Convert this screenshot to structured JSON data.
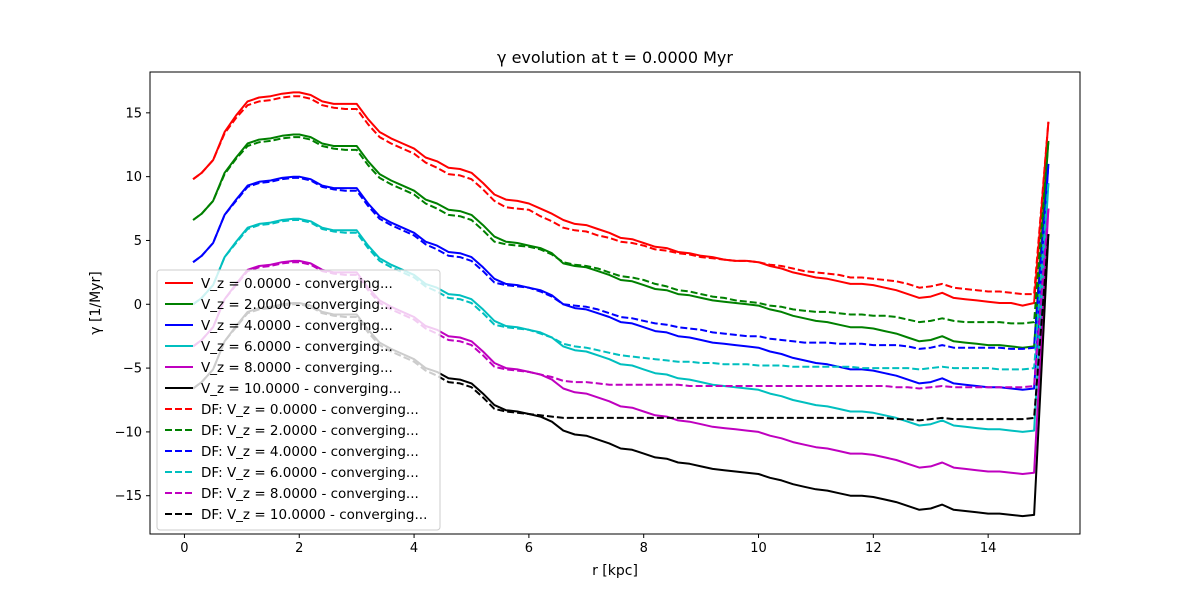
{
  "chart_data": {
    "type": "line",
    "title": "γ evolution at t = 0.0000 Myr",
    "xlabel": "r [kpc]",
    "ylabel": "γ [1/Myr]",
    "xlim": [
      -0.6,
      15.6
    ],
    "ylim": [
      -18.0,
      18.2
    ],
    "x_ticks": [
      0,
      2,
      4,
      6,
      8,
      10,
      12,
      14
    ],
    "y_ticks": [
      -15,
      -10,
      -5,
      0,
      5,
      10,
      15
    ],
    "grid": false,
    "legend_position": "lower-left",
    "x": [
      0.15,
      0.3,
      0.5,
      0.7,
      0.9,
      1.1,
      1.3,
      1.5,
      1.7,
      1.9,
      2.0,
      2.2,
      2.4,
      2.6,
      2.8,
      3.0,
      3.2,
      3.4,
      3.6,
      3.8,
      4.0,
      4.2,
      4.4,
      4.6,
      4.8,
      5.0,
      5.2,
      5.4,
      5.6,
      5.8,
      6.0,
      6.2,
      6.4,
      6.6,
      6.8,
      7.0,
      7.2,
      7.4,
      7.6,
      7.8,
      8.0,
      8.2,
      8.4,
      8.6,
      8.8,
      9.0,
      9.2,
      9.4,
      9.6,
      9.8,
      10.0,
      10.2,
      10.4,
      10.6,
      10.8,
      11.0,
      11.2,
      11.4,
      11.6,
      11.8,
      12.0,
      12.2,
      12.4,
      12.6,
      12.8,
      13.0,
      13.2,
      13.4,
      13.6,
      13.8,
      14.0,
      14.2,
      14.4,
      14.6,
      14.8
    ],
    "series": [
      {
        "name": "V_z = 0.0000 - converging...",
        "color": "#ff0000",
        "dash": "solid",
        "values": [
          9.8,
          10.3,
          11.3,
          13.5,
          14.8,
          15.9,
          16.2,
          16.3,
          16.5,
          16.6,
          16.6,
          16.4,
          15.9,
          15.7,
          15.7,
          15.7,
          14.5,
          13.5,
          13.0,
          12.6,
          12.2,
          11.5,
          11.2,
          10.7,
          10.6,
          10.3,
          9.5,
          8.6,
          8.2,
          8.1,
          7.9,
          7.5,
          7.1,
          6.6,
          6.3,
          6.2,
          5.9,
          5.6,
          5.2,
          5.1,
          4.8,
          4.5,
          4.4,
          4.1,
          4.0,
          3.8,
          3.7,
          3.5,
          3.4,
          3.4,
          3.3,
          3.0,
          2.8,
          2.5,
          2.3,
          2.1,
          2.0,
          1.8,
          1.6,
          1.6,
          1.5,
          1.3,
          1.1,
          0.8,
          0.5,
          0.6,
          0.9,
          0.5,
          0.4,
          0.3,
          0.2,
          0.1,
          0.1,
          -0.1,
          0.1
        ]
      },
      {
        "name": "V_z = 2.0000 - converging...",
        "color": "#008000",
        "dash": "solid",
        "values": [
          6.6,
          7.1,
          8.1,
          10.3,
          11.5,
          12.6,
          12.9,
          13.0,
          13.2,
          13.3,
          13.3,
          13.1,
          12.6,
          12.4,
          12.4,
          12.4,
          11.2,
          10.2,
          9.7,
          9.3,
          8.9,
          8.2,
          7.9,
          7.4,
          7.3,
          7.0,
          6.2,
          5.3,
          4.9,
          4.8,
          4.6,
          4.4,
          4.0,
          3.2,
          3.0,
          2.9,
          2.6,
          2.3,
          1.9,
          1.8,
          1.5,
          1.2,
          1.1,
          0.8,
          0.7,
          0.5,
          0.3,
          0.2,
          0.1,
          0.0,
          -0.1,
          -0.4,
          -0.6,
          -0.9,
          -1.1,
          -1.3,
          -1.4,
          -1.6,
          -1.8,
          -1.8,
          -1.9,
          -2.1,
          -2.3,
          -2.6,
          -2.9,
          -2.8,
          -2.5,
          -2.9,
          -3.0,
          -3.1,
          -3.2,
          -3.2,
          -3.3,
          -3.4,
          -3.3
        ]
      },
      {
        "name": "V_z = 4.0000 - converging...",
        "color": "#0000ff",
        "dash": "solid",
        "values": [
          3.3,
          3.8,
          4.8,
          7.0,
          8.2,
          9.3,
          9.6,
          9.7,
          9.9,
          10.0,
          10.0,
          9.8,
          9.3,
          9.1,
          9.1,
          9.1,
          7.9,
          6.9,
          6.4,
          6.0,
          5.6,
          4.9,
          4.6,
          4.1,
          4.0,
          3.7,
          2.9,
          2.0,
          1.6,
          1.5,
          1.3,
          1.1,
          0.7,
          0.0,
          -0.3,
          -0.4,
          -0.7,
          -1.0,
          -1.4,
          -1.5,
          -1.8,
          -2.1,
          -2.2,
          -2.5,
          -2.6,
          -2.8,
          -3.0,
          -3.1,
          -3.2,
          -3.3,
          -3.4,
          -3.7,
          -3.9,
          -4.2,
          -4.4,
          -4.6,
          -4.7,
          -4.9,
          -5.1,
          -5.1,
          -5.2,
          -5.4,
          -5.6,
          -5.9,
          -6.2,
          -6.1,
          -5.8,
          -6.2,
          -6.3,
          -6.4,
          -6.5,
          -6.5,
          -6.6,
          -6.7,
          -6.6
        ]
      },
      {
        "name": "V_z = 6.0000 - converging...",
        "color": "#00bfbf",
        "dash": "solid",
        "values": [
          0.0,
          0.5,
          1.5,
          3.7,
          4.9,
          6.0,
          6.3,
          6.4,
          6.6,
          6.7,
          6.7,
          6.5,
          6.0,
          5.8,
          5.8,
          5.8,
          4.6,
          3.6,
          3.1,
          2.7,
          2.3,
          1.6,
          1.3,
          0.8,
          0.7,
          0.4,
          -0.4,
          -1.3,
          -1.7,
          -1.8,
          -2.0,
          -2.2,
          -2.6,
          -3.3,
          -3.6,
          -3.7,
          -4.0,
          -4.3,
          -4.7,
          -4.8,
          -5.1,
          -5.4,
          -5.5,
          -5.8,
          -5.9,
          -6.1,
          -6.3,
          -6.4,
          -6.5,
          -6.6,
          -6.7,
          -7.0,
          -7.2,
          -7.5,
          -7.7,
          -7.9,
          -8.0,
          -8.2,
          -8.4,
          -8.4,
          -8.5,
          -8.7,
          -8.9,
          -9.2,
          -9.5,
          -9.4,
          -9.1,
          -9.5,
          -9.6,
          -9.7,
          -9.8,
          -9.8,
          -9.9,
          -10.0,
          -9.9
        ]
      },
      {
        "name": "V_z = 8.0000 - converging...",
        "color": "#bf00bf",
        "dash": "solid",
        "values": [
          -3.3,
          -2.8,
          -1.8,
          0.4,
          1.6,
          2.7,
          3.0,
          3.1,
          3.3,
          3.4,
          3.4,
          3.2,
          2.7,
          2.5,
          2.5,
          2.5,
          1.3,
          0.3,
          -0.2,
          -0.6,
          -1.0,
          -1.7,
          -2.0,
          -2.5,
          -2.6,
          -2.9,
          -3.7,
          -4.6,
          -5.0,
          -5.1,
          -5.3,
          -5.5,
          -5.9,
          -6.6,
          -6.9,
          -7.0,
          -7.3,
          -7.6,
          -8.0,
          -8.1,
          -8.4,
          -8.7,
          -8.8,
          -9.1,
          -9.2,
          -9.4,
          -9.6,
          -9.7,
          -9.8,
          -9.9,
          -10.0,
          -10.3,
          -10.5,
          -10.8,
          -11.0,
          -11.2,
          -11.3,
          -11.5,
          -11.7,
          -11.7,
          -11.8,
          -12.0,
          -12.2,
          -12.5,
          -12.8,
          -12.7,
          -12.4,
          -12.8,
          -12.9,
          -13.0,
          -13.1,
          -13.1,
          -13.2,
          -13.3,
          -13.2
        ]
      },
      {
        "name": "V_z = 10.0000 - converging...",
        "color": "#000000",
        "dash": "solid",
        "values": [
          -6.6,
          -6.1,
          -5.1,
          -2.9,
          -1.7,
          -0.6,
          -0.3,
          -0.2,
          0.0,
          0.1,
          0.1,
          -0.1,
          -0.6,
          -0.8,
          -0.8,
          -0.8,
          -2.0,
          -3.0,
          -3.5,
          -3.9,
          -4.3,
          -5.0,
          -5.3,
          -5.8,
          -5.9,
          -6.2,
          -7.0,
          -7.9,
          -8.3,
          -8.4,
          -8.6,
          -8.8,
          -9.2,
          -9.9,
          -10.2,
          -10.3,
          -10.6,
          -10.9,
          -11.3,
          -11.4,
          -11.7,
          -12.0,
          -12.1,
          -12.4,
          -12.5,
          -12.7,
          -12.9,
          -13.0,
          -13.1,
          -13.2,
          -13.3,
          -13.6,
          -13.8,
          -14.1,
          -14.3,
          -14.5,
          -14.6,
          -14.8,
          -15.0,
          -15.0,
          -15.1,
          -15.3,
          -15.5,
          -15.8,
          -16.1,
          -16.0,
          -15.7,
          -16.1,
          -16.2,
          -16.3,
          -16.4,
          -16.4,
          -16.5,
          -16.6,
          -16.5
        ]
      },
      {
        "name": "DF: V_z = 0.0000 - converging...",
        "color": "#ff0000",
        "dash": "dashed",
        "values": [
          9.8,
          10.3,
          11.3,
          13.4,
          14.6,
          15.6,
          15.9,
          16.0,
          16.2,
          16.3,
          16.3,
          16.1,
          15.6,
          15.4,
          15.3,
          15.3,
          14.1,
          13.1,
          12.6,
          12.2,
          11.8,
          11.1,
          10.7,
          10.2,
          10.1,
          9.8,
          9.0,
          8.1,
          7.6,
          7.5,
          7.4,
          6.9,
          6.5,
          6.0,
          5.8,
          5.7,
          5.4,
          5.2,
          4.9,
          4.8,
          4.6,
          4.3,
          4.2,
          4.0,
          3.9,
          3.7,
          3.6,
          3.5,
          3.4,
          3.4,
          3.3,
          3.1,
          3.0,
          2.8,
          2.6,
          2.5,
          2.4,
          2.3,
          2.1,
          2.1,
          2.0,
          1.9,
          1.8,
          1.6,
          1.3,
          1.4,
          1.6,
          1.3,
          1.2,
          1.1,
          1.0,
          1.0,
          0.9,
          0.8,
          0.8
        ]
      },
      {
        "name": "DF: V_z = 2.0000 - converging...",
        "color": "#008000",
        "dash": "dashed",
        "values": [
          6.6,
          7.1,
          8.1,
          10.2,
          11.4,
          12.4,
          12.7,
          12.8,
          13.0,
          13.1,
          13.1,
          12.9,
          12.4,
          12.2,
          12.1,
          12.1,
          10.9,
          9.9,
          9.4,
          9.0,
          8.6,
          7.9,
          7.5,
          7.0,
          6.9,
          6.6,
          5.8,
          4.9,
          4.7,
          4.6,
          4.5,
          4.3,
          3.9,
          3.3,
          3.1,
          3.0,
          2.8,
          2.5,
          2.2,
          2.1,
          1.9,
          1.6,
          1.4,
          1.1,
          1.0,
          0.8,
          0.6,
          0.5,
          0.3,
          0.2,
          0.1,
          -0.1,
          -0.2,
          -0.4,
          -0.5,
          -0.6,
          -0.6,
          -0.7,
          -0.8,
          -0.8,
          -0.9,
          -0.9,
          -1.0,
          -1.2,
          -1.4,
          -1.3,
          -1.1,
          -1.3,
          -1.4,
          -1.4,
          -1.4,
          -1.4,
          -1.5,
          -1.5,
          -1.4
        ]
      },
      {
        "name": "DF: V_z = 4.0000 - converging...",
        "color": "#0000ff",
        "dash": "dashed",
        "values": [
          3.3,
          3.8,
          4.8,
          7.0,
          8.1,
          9.2,
          9.5,
          9.6,
          9.8,
          9.9,
          9.9,
          9.7,
          9.2,
          9.0,
          8.9,
          8.9,
          7.7,
          6.7,
          6.2,
          5.8,
          5.4,
          4.7,
          4.3,
          3.8,
          3.7,
          3.4,
          2.6,
          1.7,
          1.5,
          1.4,
          1.3,
          1.0,
          0.6,
          0.0,
          -0.1,
          -0.2,
          -0.4,
          -0.7,
          -1.0,
          -1.1,
          -1.3,
          -1.5,
          -1.6,
          -1.8,
          -1.9,
          -2.0,
          -2.2,
          -2.3,
          -2.4,
          -2.5,
          -2.5,
          -2.7,
          -2.8,
          -2.9,
          -3.0,
          -3.0,
          -3.0,
          -3.1,
          -3.1,
          -3.1,
          -3.2,
          -3.2,
          -3.2,
          -3.3,
          -3.5,
          -3.4,
          -3.2,
          -3.4,
          -3.4,
          -3.4,
          -3.4,
          -3.4,
          -3.5,
          -3.5,
          -3.4
        ]
      },
      {
        "name": "DF: V_z = 6.0000 - converging...",
        "color": "#00bfbf",
        "dash": "dashed",
        "values": [
          0.0,
          0.5,
          1.5,
          3.7,
          4.8,
          5.9,
          6.2,
          6.3,
          6.5,
          6.6,
          6.6,
          6.4,
          5.9,
          5.7,
          5.6,
          5.6,
          4.4,
          3.4,
          2.9,
          2.5,
          2.1,
          1.4,
          1.0,
          0.5,
          0.4,
          0.1,
          -0.7,
          -1.6,
          -1.8,
          -1.9,
          -2.0,
          -2.3,
          -2.6,
          -3.1,
          -3.3,
          -3.4,
          -3.6,
          -3.8,
          -4.0,
          -4.1,
          -4.2,
          -4.3,
          -4.4,
          -4.5,
          -4.5,
          -4.6,
          -4.6,
          -4.7,
          -4.7,
          -4.7,
          -4.8,
          -4.8,
          -4.8,
          -4.9,
          -4.9,
          -4.9,
          -4.9,
          -4.9,
          -4.9,
          -5.0,
          -5.0,
          -5.0,
          -5.0,
          -5.0,
          -5.1,
          -5.0,
          -4.9,
          -5.0,
          -5.0,
          -5.0,
          -5.0,
          -5.1,
          -5.1,
          -5.1,
          -5.0
        ]
      },
      {
        "name": "DF: V_z = 8.0000 - converging...",
        "color": "#bf00bf",
        "dash": "dashed",
        "values": [
          -3.3,
          -2.8,
          -1.8,
          0.4,
          1.5,
          2.6,
          2.9,
          3.0,
          3.2,
          3.3,
          3.3,
          3.1,
          2.6,
          2.4,
          2.3,
          2.3,
          1.1,
          0.1,
          -0.4,
          -0.8,
          -1.2,
          -1.9,
          -2.3,
          -2.8,
          -2.9,
          -3.2,
          -4.0,
          -4.9,
          -5.1,
          -5.2,
          -5.3,
          -5.5,
          -5.7,
          -6.0,
          -6.1,
          -6.1,
          -6.2,
          -6.3,
          -6.3,
          -6.3,
          -6.3,
          -6.3,
          -6.3,
          -6.3,
          -6.4,
          -6.4,
          -6.4,
          -6.4,
          -6.4,
          -6.4,
          -6.4,
          -6.4,
          -6.4,
          -6.4,
          -6.4,
          -6.4,
          -6.4,
          -6.4,
          -6.4,
          -6.4,
          -6.4,
          -6.4,
          -6.5,
          -6.5,
          -6.6,
          -6.5,
          -6.4,
          -6.5,
          -6.5,
          -6.5,
          -6.5,
          -6.5,
          -6.5,
          -6.5,
          -6.4
        ]
      },
      {
        "name": "DF: V_z = 10.0000 - converging...",
        "color": "#000000",
        "dash": "dashed",
        "values": [
          -6.6,
          -6.1,
          -5.1,
          -2.9,
          -1.8,
          -0.7,
          -0.4,
          -0.3,
          -0.1,
          0.0,
          0.0,
          -0.2,
          -0.7,
          -0.9,
          -1.0,
          -1.0,
          -2.2,
          -3.2,
          -3.7,
          -4.1,
          -4.5,
          -5.2,
          -5.6,
          -6.1,
          -6.2,
          -6.5,
          -7.3,
          -8.2,
          -8.4,
          -8.5,
          -8.6,
          -8.7,
          -8.8,
          -8.9,
          -8.9,
          -8.9,
          -8.9,
          -8.9,
          -8.9,
          -8.9,
          -8.9,
          -8.9,
          -8.9,
          -8.9,
          -8.9,
          -8.9,
          -8.9,
          -8.9,
          -8.9,
          -8.9,
          -8.9,
          -8.9,
          -8.9,
          -8.9,
          -8.9,
          -8.9,
          -8.9,
          -8.9,
          -8.9,
          -8.9,
          -8.9,
          -8.9,
          -9.0,
          -9.0,
          -9.1,
          -9.0,
          -8.9,
          -9.0,
          -9.0,
          -9.0,
          -9.0,
          -9.0,
          -9.0,
          -9.0,
          -8.9
        ]
      }
    ],
    "edge_spike": {
      "x_start": 14.85,
      "x_end": 15.05,
      "end_values": [
        14.3,
        12.8,
        11.0,
        9.5,
        7.5,
        5.5,
        14.3,
        12.8,
        11.0,
        9.5,
        7.5,
        5.5
      ]
    }
  }
}
